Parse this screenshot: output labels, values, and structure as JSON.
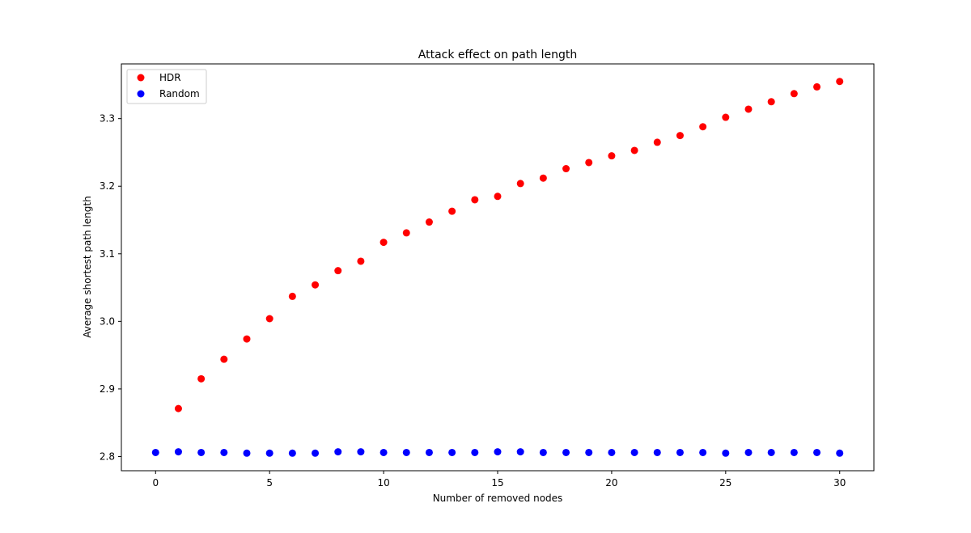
{
  "chart_data": {
    "type": "scatter",
    "title": "Attack effect on path length",
    "xlabel": "Number of removed nodes",
    "ylabel": "Average shortest path length",
    "xlim": [
      -1.5,
      31.5
    ],
    "ylim": [
      2.779,
      3.381
    ],
    "xticks": [
      0,
      5,
      10,
      15,
      20,
      25,
      30
    ],
    "yticks": [
      2.8,
      2.9,
      3.0,
      3.1,
      3.2,
      3.3
    ],
    "ytick_labels": [
      "2.8",
      "2.9",
      "3.0",
      "3.1",
      "3.2",
      "3.3"
    ],
    "grid": false,
    "legend_position": "top-left",
    "series": [
      {
        "name": "HDR",
        "color": "#ff0000",
        "x": [
          1,
          2,
          3,
          4,
          5,
          6,
          7,
          8,
          9,
          10,
          11,
          12,
          13,
          14,
          15,
          16,
          17,
          18,
          19,
          20,
          21,
          22,
          23,
          24,
          25,
          26,
          27,
          28,
          29,
          30
        ],
        "y": [
          2.871,
          2.915,
          2.944,
          2.974,
          3.004,
          3.037,
          3.054,
          3.075,
          3.089,
          3.117,
          3.131,
          3.147,
          3.163,
          3.18,
          3.185,
          3.204,
          3.212,
          3.226,
          3.235,
          3.245,
          3.253,
          3.265,
          3.275,
          3.288,
          3.302,
          3.314,
          3.325,
          3.337,
          3.347,
          3.355
        ]
      },
      {
        "name": "Random",
        "color": "#0000ff",
        "x": [
          0,
          1,
          2,
          3,
          4,
          5,
          6,
          7,
          8,
          9,
          10,
          11,
          12,
          13,
          14,
          15,
          16,
          17,
          18,
          19,
          20,
          21,
          22,
          23,
          24,
          25,
          26,
          27,
          28,
          29,
          30
        ],
        "y": [
          2.806,
          2.807,
          2.806,
          2.806,
          2.805,
          2.805,
          2.805,
          2.805,
          2.807,
          2.807,
          2.806,
          2.806,
          2.806,
          2.806,
          2.806,
          2.807,
          2.807,
          2.806,
          2.806,
          2.806,
          2.806,
          2.806,
          2.806,
          2.806,
          2.806,
          2.805,
          2.806,
          2.806,
          2.806,
          2.806,
          2.805
        ]
      }
    ]
  }
}
